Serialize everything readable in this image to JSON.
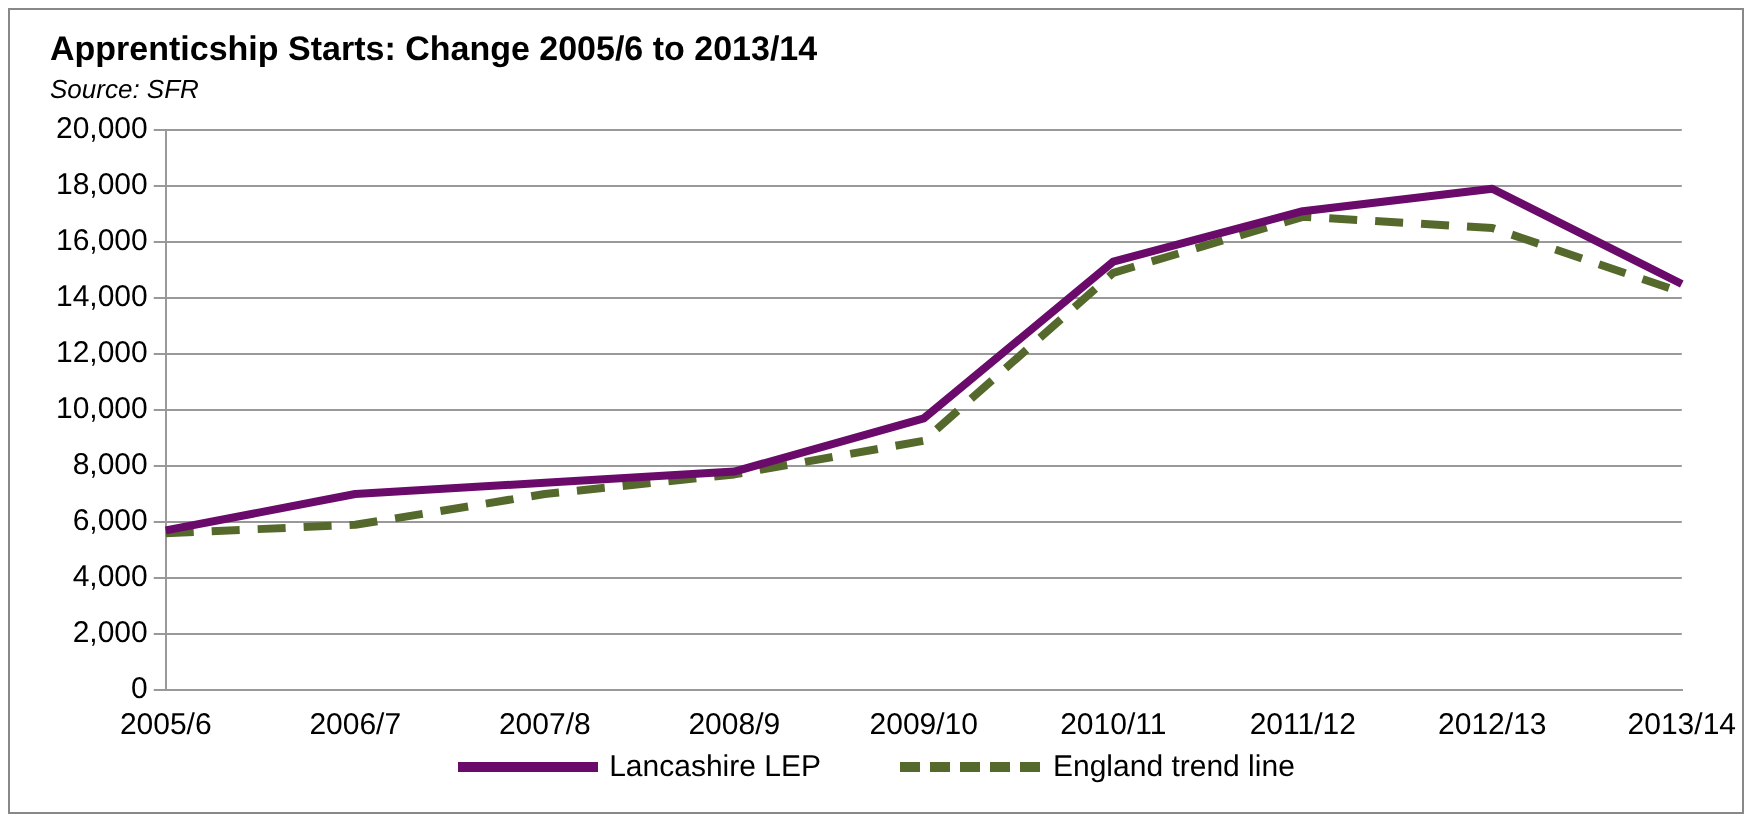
{
  "chart_data": {
    "type": "line",
    "title": "Apprenticship Starts: Change 2005/6 to 2013/14",
    "subtitle": "Source: SFR",
    "categories": [
      "2005/6",
      "2006/7",
      "2007/8",
      "2008/9",
      "2009/10",
      "2010/11",
      "2011/12",
      "2012/13",
      "2013/14"
    ],
    "series": [
      {
        "name": "Lancashire LEP",
        "color": "#6a0a6a",
        "line_style": "solid",
        "values": [
          5700,
          7000,
          7400,
          7800,
          9700,
          15300,
          17100,
          17900,
          14500
        ]
      },
      {
        "name": "England trend line",
        "color": "#56692c",
        "line_style": "dashed",
        "values": [
          5600,
          5900,
          7000,
          7700,
          8900,
          14900,
          16900,
          16500,
          14200
        ]
      }
    ],
    "ylim": [
      0,
      20000
    ],
    "yticks": [
      0,
      {
        "value": 2000,
        "label": "2,000"
      },
      {
        "value": 4000,
        "label": "4,000"
      },
      {
        "value": 6000,
        "label": "6,000"
      },
      {
        "value": 8000,
        "label": "8,000"
      },
      {
        "value": 10000,
        "label": "10,000"
      },
      {
        "value": 12000,
        "label": "12,000"
      },
      {
        "value": 14000,
        "label": "14,000"
      },
      {
        "value": 16000,
        "label": "16,000"
      },
      {
        "value": 18000,
        "label": "18,000"
      },
      {
        "value": 20000,
        "label": "20,000"
      }
    ],
    "grid": "y",
    "legend": "bottom",
    "marker": "none"
  }
}
